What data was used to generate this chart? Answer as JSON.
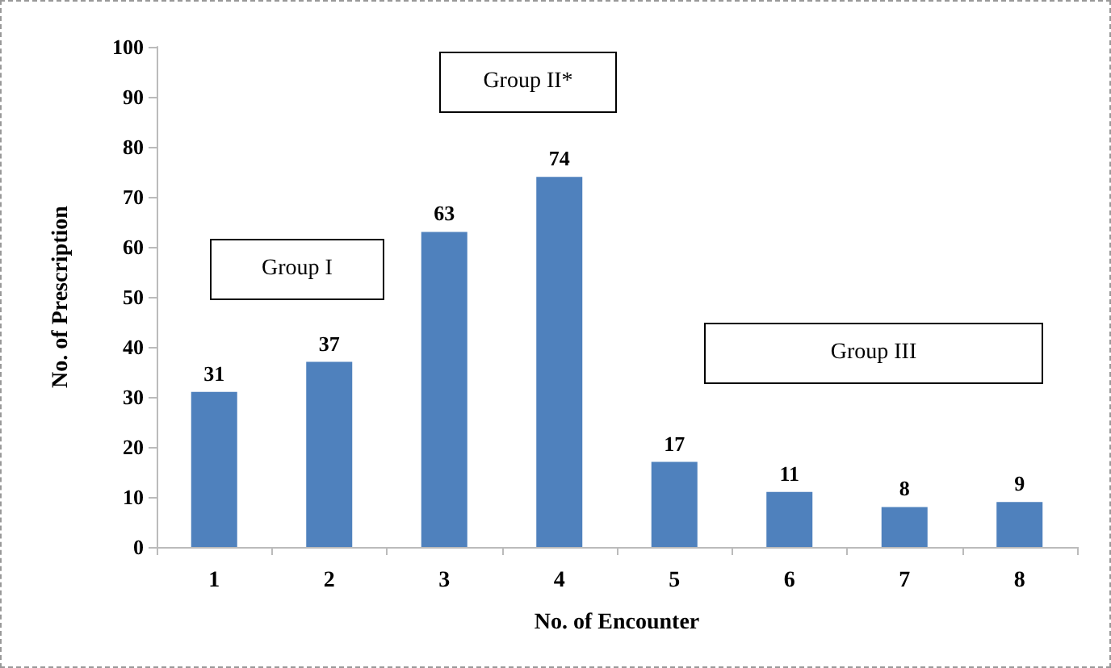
{
  "chart_data": {
    "type": "bar",
    "xlabel": "No. of Encounter",
    "ylabel": "No. of Prescription",
    "categories": [
      "1",
      "2",
      "3",
      "4",
      "5",
      "6",
      "7",
      "8"
    ],
    "values": [
      31,
      37,
      63,
      74,
      17,
      11,
      8,
      9
    ],
    "color": "#4f81bd",
    "ylim": [
      0,
      100
    ],
    "yticks": [
      0,
      10,
      20,
      30,
      40,
      50,
      60,
      70,
      80,
      90,
      100
    ],
    "grid": false,
    "data_labels": true,
    "annotations": [
      "Group I",
      "Group II*",
      "Group III"
    ]
  }
}
